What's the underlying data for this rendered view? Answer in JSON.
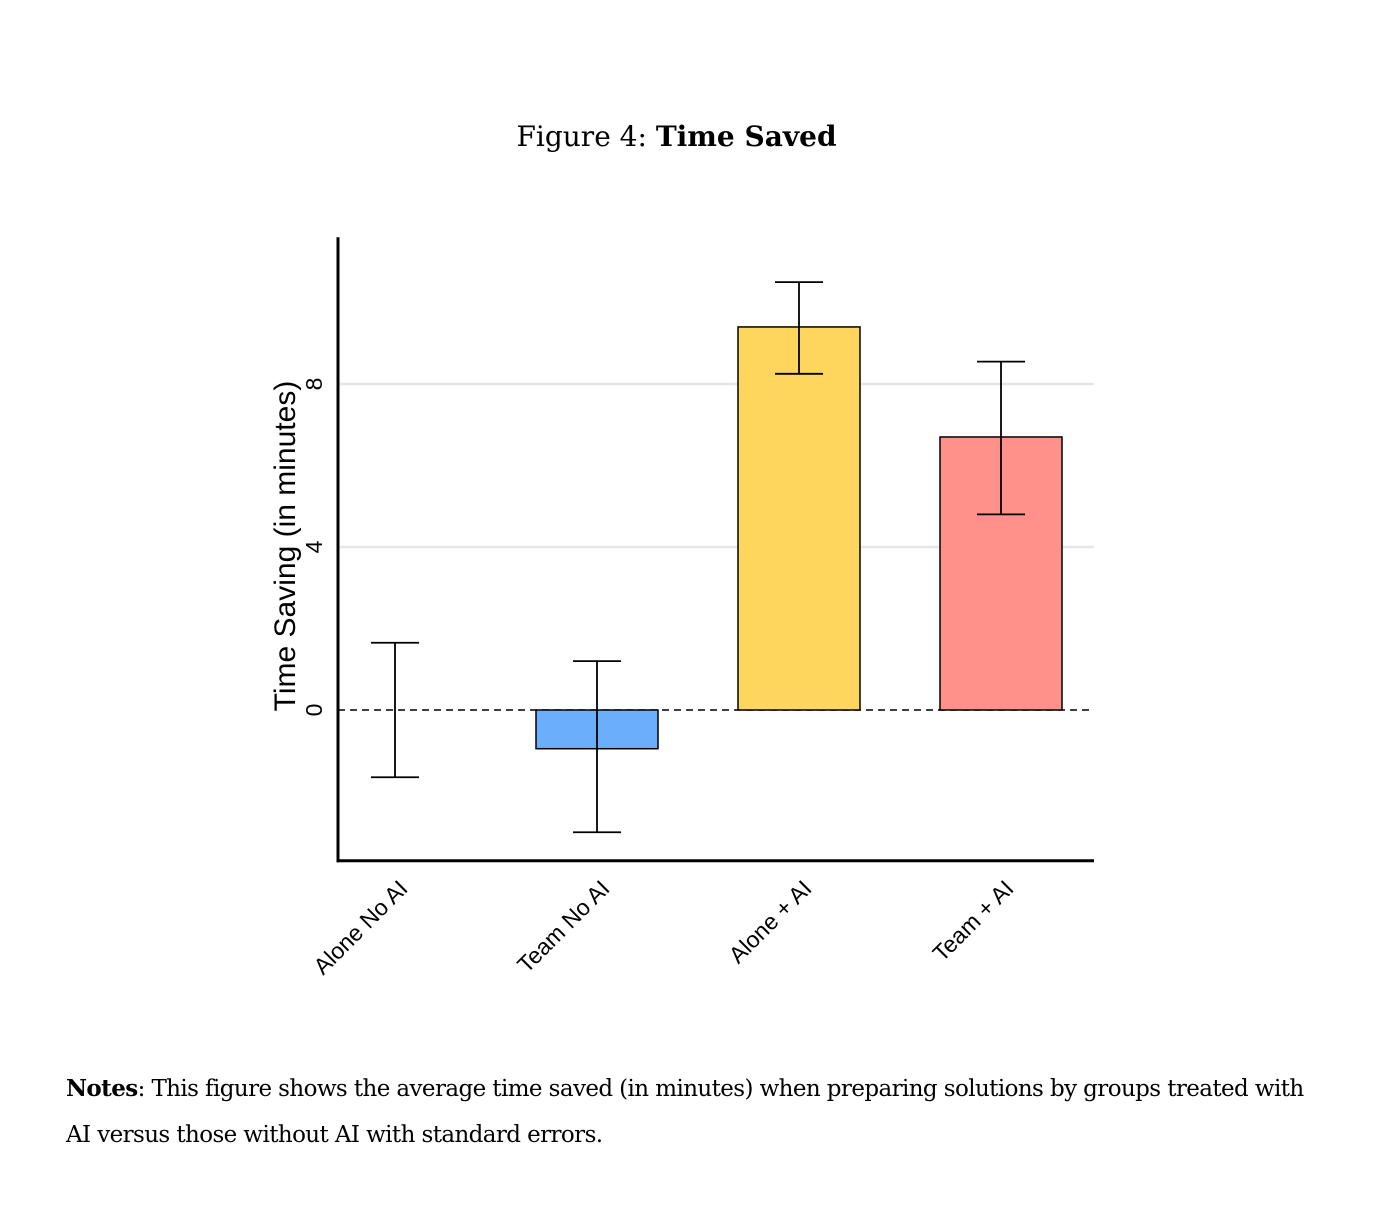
{
  "figure": {
    "label": "Figure 4:",
    "title": "Time Saved"
  },
  "notes": {
    "label": "Notes",
    "text": ": This figure shows the average time saved (in minutes) when preparing solutions by groups treated with AI versus those without AI with standard errors."
  },
  "chart_data": {
    "type": "bar",
    "categories": [
      "Alone No AI",
      "Team No AI",
      "Alone + AI",
      "Team + AI"
    ],
    "values": [
      0.0,
      -0.95,
      9.4,
      6.7
    ],
    "error_low": [
      -1.65,
      -3.0,
      8.25,
      4.8
    ],
    "error_high": [
      1.65,
      1.2,
      10.5,
      8.55
    ],
    "colors": [
      "#ffffff",
      "#6aaefc",
      "#ffd65d",
      "#ff918a"
    ],
    "ylabel": "Time Saving (in minutes)",
    "yticks": [
      0,
      4,
      8
    ],
    "ylim": [
      -3.7,
      11.6
    ],
    "gridlines": [
      4,
      8
    ],
    "reference_line": 0,
    "legend": "none"
  }
}
